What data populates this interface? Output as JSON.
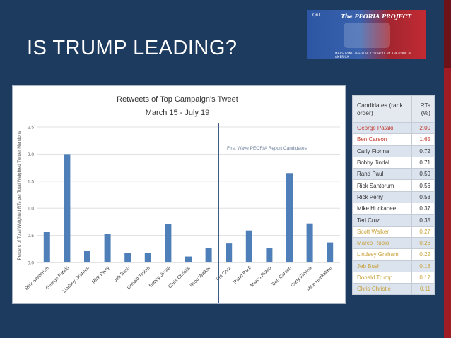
{
  "slide": {
    "title": "IS TRUMP LEADING?"
  },
  "banner": {
    "brand": "Qnl",
    "project_name": "The PEORIA PROJECT",
    "tagline": "MEASURING THE PUBLIC SCHOOL of RHETORIC in AMERICA"
  },
  "chart_data": {
    "type": "bar",
    "title": "Retweets of Top Campaign's Tweet",
    "subtitle": "March 15 - July 19",
    "ylabel": "Percent of Total Weighted RTs per Total Weighted Twitter Mentions",
    "xlabel": "",
    "ylim": [
      0,
      2.5
    ],
    "yticks": [
      "0.0",
      "0.5",
      "1.0",
      "1.5",
      "2.0",
      "2.5"
    ],
    "grid": true,
    "categories": [
      "Rick Santorum",
      "George Pataki",
      "Lindsey Graham",
      "Rick Perry",
      "Jeb Bush",
      "Donald Trump",
      "Bobby Jindal",
      "Chris Christie",
      "Scott Walker",
      "Ted Cruz",
      "Rand Paul",
      "Marco Rubio",
      "Ben Carson",
      "Carly Fiorina",
      "Mike Huckabee"
    ],
    "values": [
      0.56,
      2.0,
      0.22,
      0.53,
      0.18,
      0.17,
      0.71,
      0.11,
      0.27,
      0.35,
      0.59,
      0.26,
      1.65,
      0.72,
      0.37
    ],
    "bar_color": "#4f7fb9",
    "annotation": {
      "text": "First Wave PEORIA Report Candidates",
      "divider_after_index": 8
    }
  },
  "rank_table": {
    "headers": [
      "Candidates (rank order)",
      "RTs (%)"
    ],
    "rows": [
      {
        "name": "George Pataki",
        "value": "2.00",
        "color": "#c0392b"
      },
      {
        "name": "Ben Carson",
        "value": "1.65",
        "color": "#c0392b"
      },
      {
        "name": "Carly Fiorina",
        "value": "0.72",
        "color": "#333333"
      },
      {
        "name": "Bobby Jindal",
        "value": "0.71",
        "color": "#333333"
      },
      {
        "name": "Rand Paul",
        "value": "0.59",
        "color": "#333333"
      },
      {
        "name": "Rick Santorum",
        "value": "0.56",
        "color": "#333333"
      },
      {
        "name": "Rick Perry",
        "value": "0.53",
        "color": "#333333"
      },
      {
        "name": "Mike Huckabee",
        "value": "0.37",
        "color": "#333333"
      },
      {
        "name": "Ted Cruz",
        "value": "0.35",
        "color": "#333333"
      },
      {
        "name": "Scott Walker",
        "value": "0.27",
        "color": "#c8a23a"
      },
      {
        "name": "Marco Rubio",
        "value": "0.26",
        "color": "#c8a23a"
      },
      {
        "name": "Lindsey Graham",
        "value": "0.22",
        "color": "#c8a23a"
      },
      {
        "name": "Jeb Bush",
        "value": "0.18",
        "color": "#c8a23a"
      },
      {
        "name": "Donald Trump",
        "value": "0.17",
        "color": "#c8a23a"
      },
      {
        "name": "Chris Christie",
        "value": "0.11",
        "color": "#c8a23a"
      }
    ]
  }
}
